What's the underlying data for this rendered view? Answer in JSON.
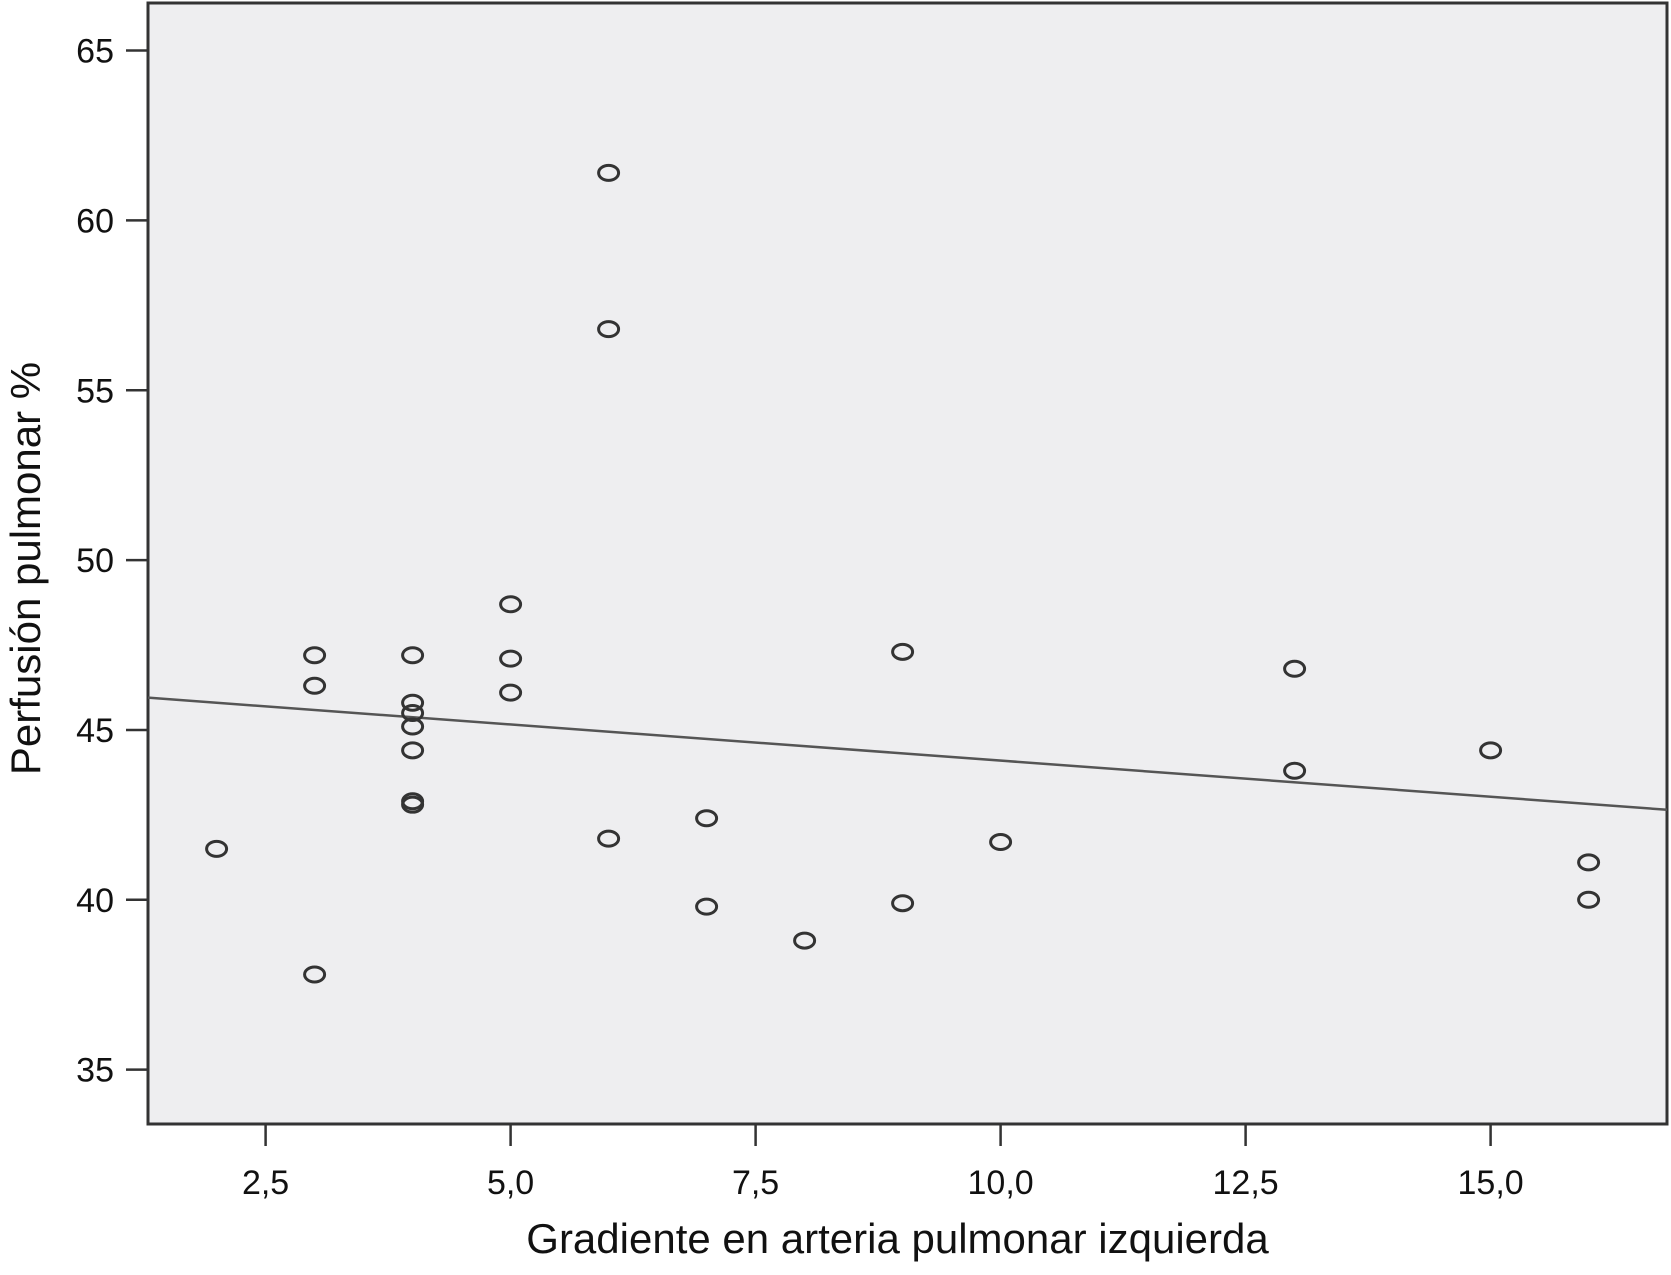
{
  "chart_data": {
    "type": "scatter",
    "title": "",
    "xlabel": "Gradiente en arteria pulmonar izquierda",
    "ylabel": "Perfusión pulmonar %",
    "xlim": [
      1.3,
      16.8
    ],
    "ylim": [
      33.4,
      66.4
    ],
    "x_ticks": [
      2.5,
      5.0,
      7.5,
      10.0,
      12.5,
      15.0
    ],
    "x_tick_labels": [
      "2,5",
      "5,0",
      "7,5",
      "10,0",
      "12,5",
      "15,0"
    ],
    "y_ticks": [
      35,
      40,
      45,
      50,
      55,
      60,
      65
    ],
    "y_tick_labels": [
      "35",
      "40",
      "45",
      "50",
      "55",
      "60",
      "65"
    ],
    "grid": false,
    "marker": "open-circle",
    "colors": {
      "plot_background": "#eeeef0",
      "marker": "#333333",
      "line": "#555555",
      "axis": "#333333"
    },
    "points": [
      {
        "x": 2,
        "y": 41.5
      },
      {
        "x": 3,
        "y": 47.2
      },
      {
        "x": 3,
        "y": 46.3
      },
      {
        "x": 3,
        "y": 37.8
      },
      {
        "x": 4,
        "y": 47.2
      },
      {
        "x": 4,
        "y": 45.8
      },
      {
        "x": 4,
        "y": 45.5
      },
      {
        "x": 4,
        "y": 45.1
      },
      {
        "x": 4,
        "y": 44.4
      },
      {
        "x": 4,
        "y": 42.9
      },
      {
        "x": 4,
        "y": 42.8
      },
      {
        "x": 5,
        "y": 48.7
      },
      {
        "x": 5,
        "y": 47.1
      },
      {
        "x": 5,
        "y": 46.1
      },
      {
        "x": 6,
        "y": 61.4
      },
      {
        "x": 6,
        "y": 56.8
      },
      {
        "x": 6,
        "y": 41.8
      },
      {
        "x": 7,
        "y": 42.4
      },
      {
        "x": 7,
        "y": 39.8
      },
      {
        "x": 8,
        "y": 38.8
      },
      {
        "x": 9,
        "y": 47.3
      },
      {
        "x": 9,
        "y": 39.9
      },
      {
        "x": 10,
        "y": 41.7
      },
      {
        "x": 13,
        "y": 46.8
      },
      {
        "x": 13,
        "y": 43.8
      },
      {
        "x": 15,
        "y": 44.4
      },
      {
        "x": 16,
        "y": 41.1
      },
      {
        "x": 16,
        "y": 40.0
      }
    ],
    "fit_line": {
      "x": [
        1.3,
        16.8
      ],
      "y": [
        45.95,
        42.65
      ]
    }
  }
}
